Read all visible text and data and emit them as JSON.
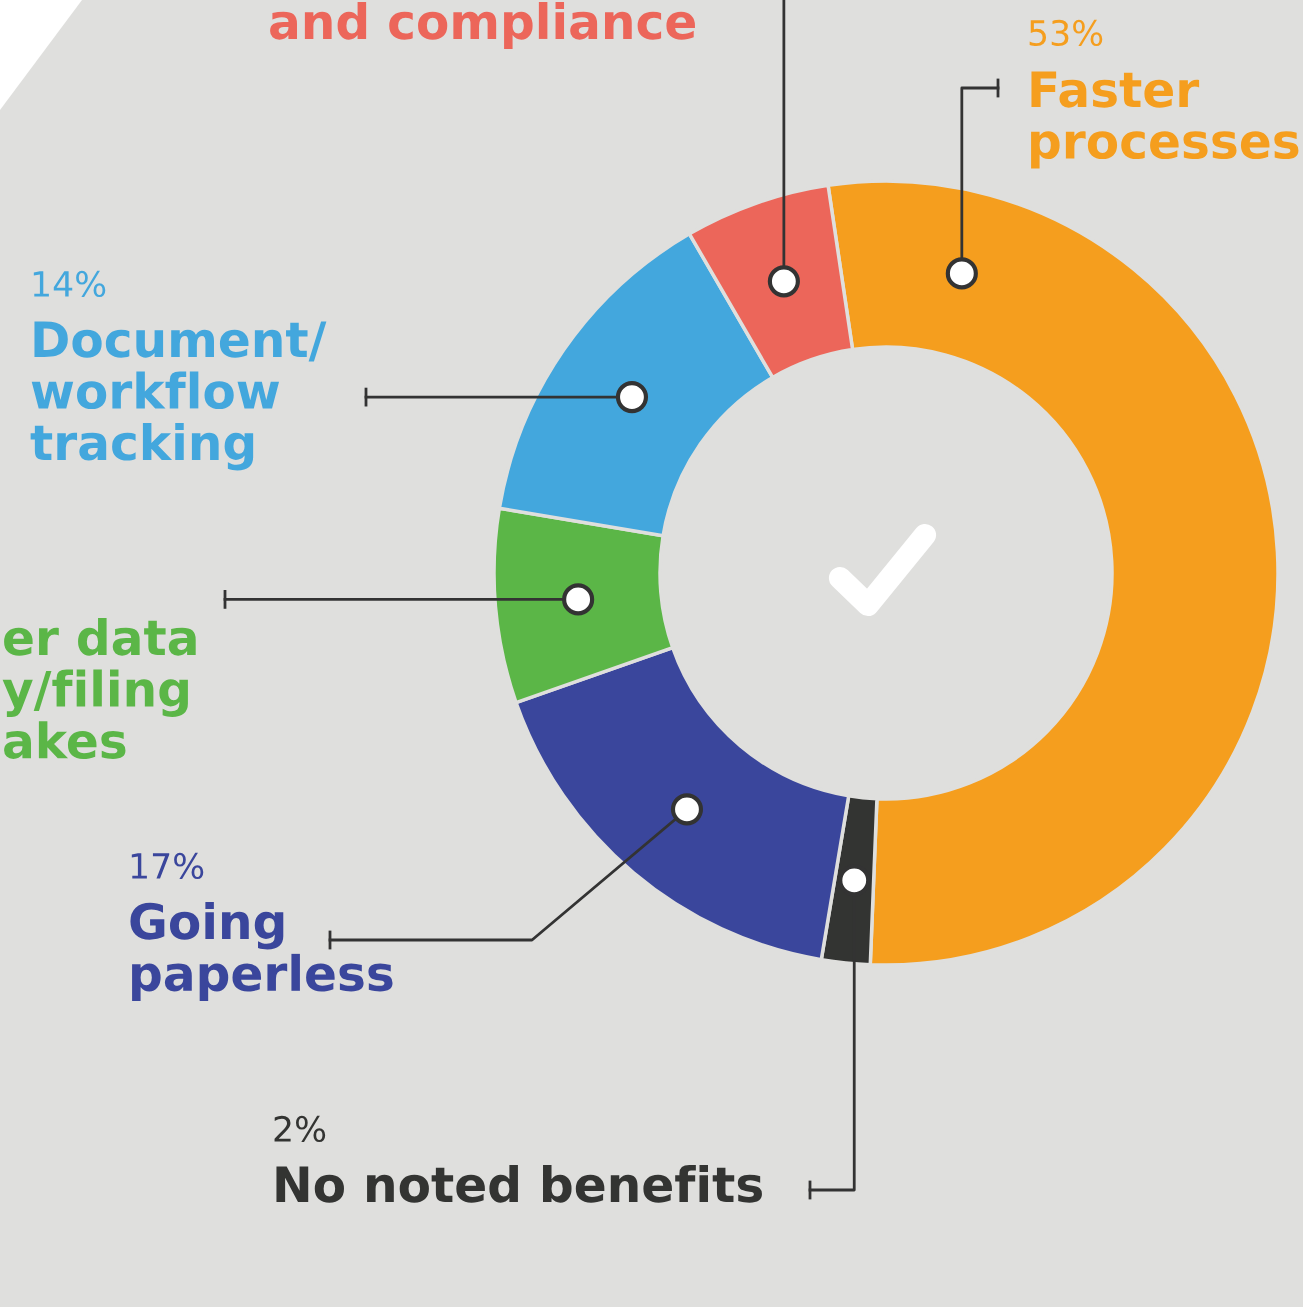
{
  "chart_data": {
    "type": "donut",
    "categories": [
      "Faster\nprocesses",
      "No noted benefits",
      "Going\npaperless",
      "er data\ny/filing\nakes",
      "Document/\nworkflow\ntracking",
      "and compliance"
    ],
    "values": [
      53,
      2,
      17,
      8,
      14,
      6
    ],
    "value_labels": [
      "53%",
      "2%",
      "17%",
      null,
      "14%",
      null
    ],
    "colors": [
      "#f59e1e",
      "#333432",
      "#3a469c",
      "#5bb647",
      "#43a7dd",
      "#ec665a"
    ]
  }
}
